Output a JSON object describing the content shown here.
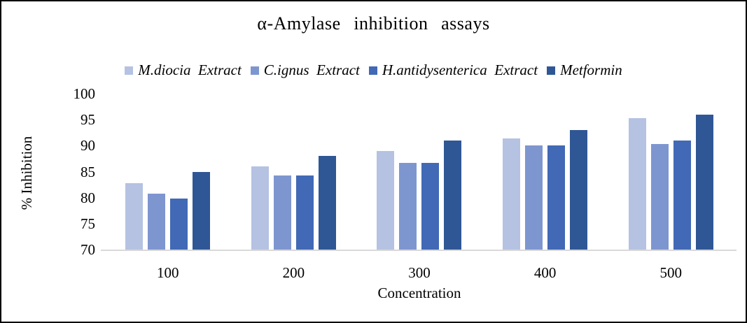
{
  "frame": {
    "background": "#ffffff",
    "border_color": "#000000"
  },
  "chart_data": {
    "type": "bar",
    "title": "α-Amylase inhibition assays",
    "xlabel": "Concentration",
    "ylabel": "% Inhibition",
    "ylim": [
      70,
      100
    ],
    "y_ticks": [
      70,
      75,
      80,
      85,
      90,
      95,
      100
    ],
    "categories": [
      "100",
      "200",
      "300",
      "400",
      "500"
    ],
    "series": [
      {
        "name": "M.diocia Extract",
        "color": "#b5c2e2",
        "values": [
          82.8,
          86.0,
          89.0,
          91.4,
          95.3
        ]
      },
      {
        "name": "C.ignus Extract",
        "color": "#7e96d0",
        "values": [
          80.8,
          84.3,
          86.7,
          90.0,
          90.3
        ]
      },
      {
        "name": "H.antidysenterica Extract",
        "color": "#4169b5",
        "values": [
          79.8,
          84.3,
          86.7,
          90.0,
          91.0
        ]
      },
      {
        "name": "Metformin",
        "color": "#2f5795",
        "values": [
          85.0,
          88.0,
          91.0,
          93.0,
          96.0
        ]
      }
    ],
    "legend_position": "top",
    "grid": false,
    "axis_line_color": "#d9d9d9"
  }
}
